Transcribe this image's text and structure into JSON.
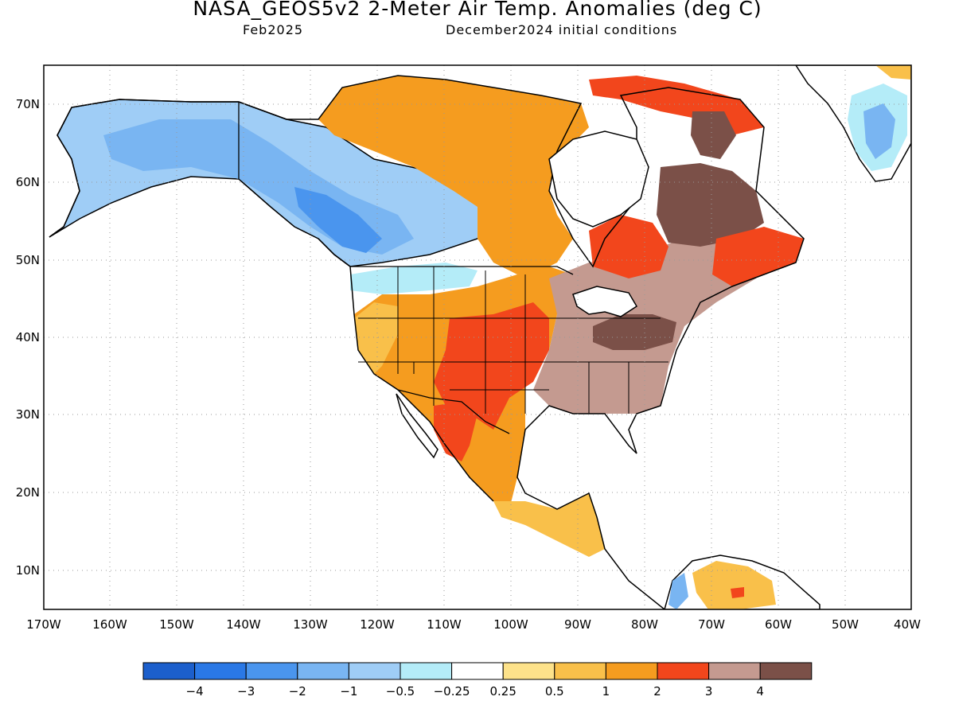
{
  "header": {
    "title": "NASA_GEOS5v2 2-Meter Air Temp. Anomalies (deg C)",
    "period": "Feb2025",
    "initial_conditions": "December2024 initial conditions"
  },
  "axes": {
    "lat_labels": [
      "70N",
      "60N",
      "50N",
      "40N",
      "30N",
      "20N",
      "10N"
    ],
    "lon_labels": [
      "170W",
      "160W",
      "150W",
      "140W",
      "130W",
      "120W",
      "110W",
      "100W",
      "90W",
      "80W",
      "70W",
      "60W",
      "50W",
      "40W"
    ]
  },
  "legend": {
    "colors": [
      "#1c5fcc",
      "#2a78e6",
      "#4a95ee",
      "#79b5f2",
      "#9fcdf6",
      "#b4ecf8",
      "#ffffff",
      "#fde28a",
      "#f9c04a",
      "#f59c1f",
      "#f2461c",
      "#c49a90",
      "#7b5048"
    ],
    "labels": [
      "−4",
      "−3",
      "−2",
      "−1",
      "−0.5",
      "−0.25",
      "0.25",
      "0.5",
      "1",
      "2",
      "3",
      "4"
    ]
  }
}
